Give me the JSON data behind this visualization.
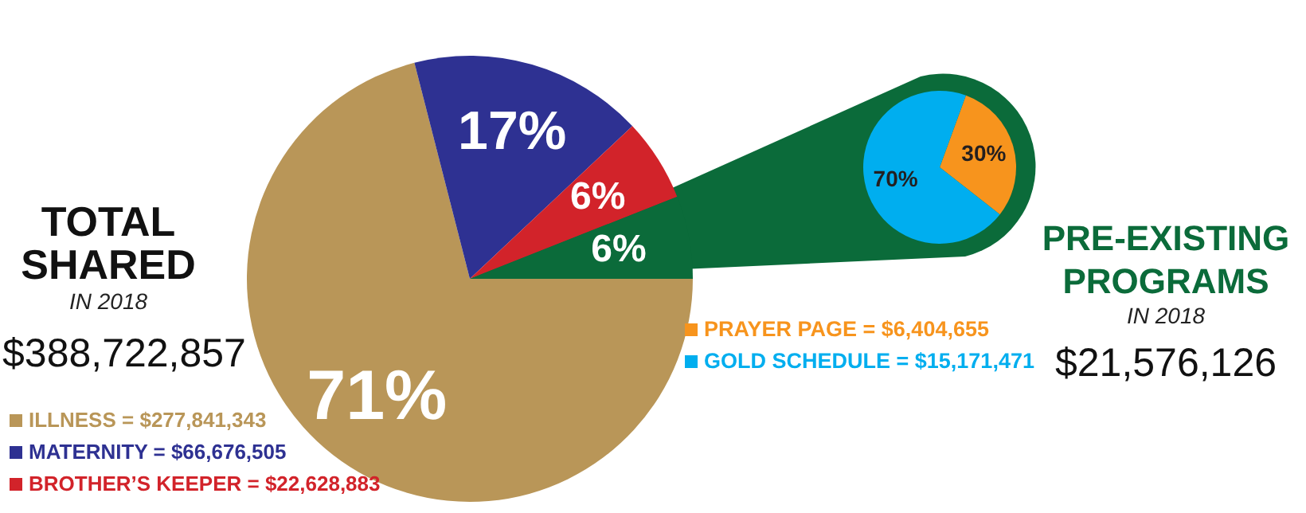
{
  "chart_data": [
    {
      "type": "pie",
      "title": "TOTAL SHARED",
      "subtitle": "IN 2018",
      "annotations": [
        "$388,722,857"
      ],
      "categories": [
        "ILLNESS = $277,841,343",
        "MATERNITY = $66,676,505",
        "BROTHER’S KEEPER = $22,628,883",
        null
      ],
      "values": [
        71,
        17,
        6,
        6
      ],
      "value_labels": [
        "71%",
        "17%",
        "6%",
        "6%"
      ],
      "colors": [
        "#b99658",
        "#2e3192",
        "#d2232a",
        "#0b6b3a"
      ],
      "legend": "bottom left"
    },
    {
      "type": "pie",
      "title": "PRE-EXISTING PROGRAMS",
      "subtitle": "IN 2018",
      "annotations": [
        "$21,576,126"
      ],
      "categories": [
        "PRAYER PAGE = $6,404,655",
        "GOLD SCHEDULE = $15,171,471"
      ],
      "values": [
        30,
        70
      ],
      "value_labels": [
        "30%",
        "70%"
      ],
      "colors": [
        "#f7941d",
        "#00aeef"
      ],
      "legend": "bottom left"
    }
  ]
}
